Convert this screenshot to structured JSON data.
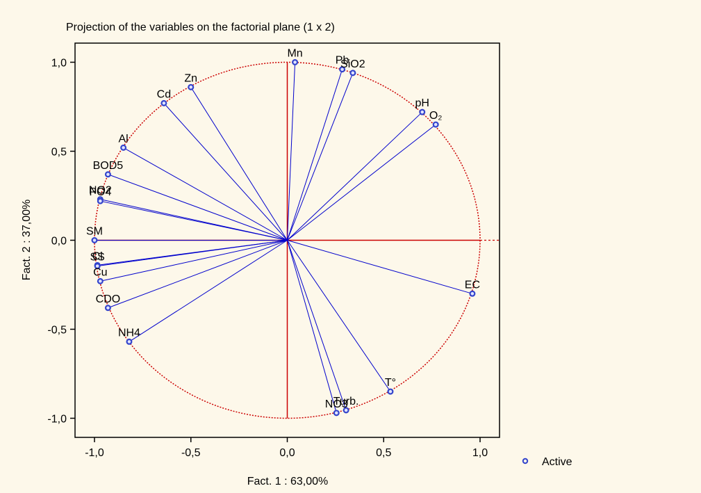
{
  "chart_data": {
    "type": "scatter",
    "title": "Projection of the variables on the factorial plane (1 x 2)",
    "xlabel": "Fact. 1  : 63,00%",
    "ylabel": "Fact. 2  : 37,00%",
    "xlim": [
      -1.1,
      1.1
    ],
    "ylim": [
      -1.1,
      1.1
    ],
    "xticks": [
      "-1,0",
      "-0,5",
      "0,0",
      "0,5",
      "1,0"
    ],
    "yticks": [
      "1,0",
      "0,5",
      "0,0",
      "-0,5",
      "-1,0"
    ],
    "legend": {
      "label": "Active",
      "placement": "outside-bottom-right"
    },
    "unit_circle": true,
    "grid": false,
    "colors": {
      "axis_line": "#cc0000",
      "circle": "#cc0000",
      "vector": "#0000cc",
      "marker": "#3344cc",
      "frame": "#000000"
    },
    "points": [
      {
        "label": "Mn",
        "x": 0.04,
        "y": 1.0
      },
      {
        "label": "Pb",
        "x": 0.285,
        "y": 0.96
      },
      {
        "label": "SiO2",
        "x": 0.34,
        "y": 0.94
      },
      {
        "label": "Zn",
        "x": -0.5,
        "y": 0.86
      },
      {
        "label": "Cd",
        "x": -0.64,
        "y": 0.77
      },
      {
        "label": "pH",
        "x": 0.7,
        "y": 0.72
      },
      {
        "label": "O₂",
        "x": 0.77,
        "y": 0.65
      },
      {
        "label": "Al",
        "x": -0.85,
        "y": 0.52
      },
      {
        "label": "BOD5",
        "x": -0.93,
        "y": 0.37
      },
      {
        "label": "NO2",
        "x": -0.97,
        "y": 0.23
      },
      {
        "label": "PO4",
        "x": -0.97,
        "y": 0.22
      },
      {
        "label": "SM",
        "x": -1.0,
        "y": 0.0
      },
      {
        "label": "Cl",
        "x": -0.985,
        "y": -0.14
      },
      {
        "label": "SS",
        "x": -0.985,
        "y": -0.145
      },
      {
        "label": "Cu",
        "x": -0.97,
        "y": -0.23
      },
      {
        "label": "CDO",
        "x": -0.93,
        "y": -0.38
      },
      {
        "label": "NH4",
        "x": -0.82,
        "y": -0.57
      },
      {
        "label": "EC",
        "x": 0.96,
        "y": -0.3
      },
      {
        "label": "T°",
        "x": 0.535,
        "y": -0.85
      },
      {
        "label": "Turb.",
        "x": 0.305,
        "y": -0.955
      },
      {
        "label": "NO3",
        "x": 0.255,
        "y": -0.97
      }
    ]
  }
}
